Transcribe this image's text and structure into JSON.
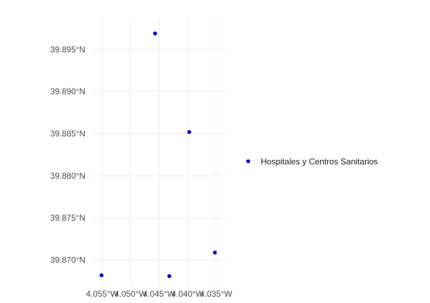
{
  "chart_data": {
    "type": "scatter",
    "title": "",
    "xlabel": "",
    "ylabel": "",
    "x_unit": "degrees longitude (negative = W)",
    "y_unit": "degrees latitude (N)",
    "xlim": [
      -4.0566,
      -4.0334
    ],
    "ylim": [
      39.8669,
      39.8983
    ],
    "x_ticks": [
      -4.055,
      -4.05,
      -4.045,
      -4.04,
      -4.035
    ],
    "x_tick_labels": [
      "4.055°W",
      "4.050°W",
      "4.045°W",
      "4.040°W",
      "4.035°W"
    ],
    "y_ticks": [
      39.87,
      39.875,
      39.88,
      39.885,
      39.89,
      39.895
    ],
    "y_tick_labels": [
      "39.870°N",
      "39.875°N",
      "39.880°N",
      "39.885°N",
      "39.890°N",
      "39.895°N"
    ],
    "grid": true,
    "legend_position": "right",
    "series": [
      {
        "name": "Hospitales y Centros Sanitarios",
        "color": "#0000cd",
        "points": [
          {
            "x": -4.0457,
            "y": 39.8969
          },
          {
            "x": -4.0397,
            "y": 39.8852
          },
          {
            "x": -4.0352,
            "y": 39.8709
          },
          {
            "x": -4.0551,
            "y": 39.8682
          },
          {
            "x": -4.0432,
            "y": 39.8681
          }
        ]
      }
    ]
  }
}
